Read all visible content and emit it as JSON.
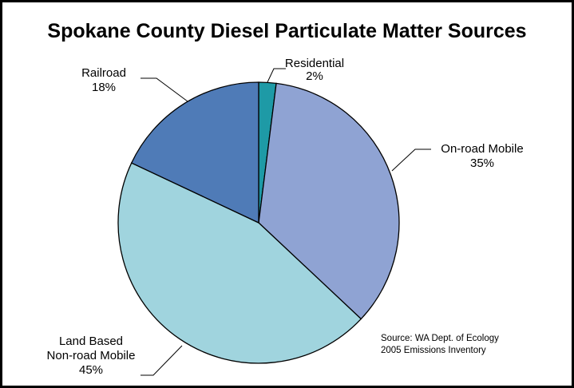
{
  "chart_data": {
    "type": "pie",
    "title": "Spokane County Diesel Particulate Matter Sources",
    "slices": [
      {
        "label_lines": [
          "Residential"
        ],
        "value_text": "2%",
        "value": 2,
        "color": "#1e9aa6"
      },
      {
        "label_lines": [
          "On-road Mobile"
        ],
        "value_text": "35%",
        "value": 35,
        "color": "#8fa3d3"
      },
      {
        "label_lines": [
          "Land Based",
          "Non-road Mobile"
        ],
        "value_text": "45%",
        "value": 45,
        "color": "#a0d4de"
      },
      {
        "label_lines": [
          "Railroad"
        ],
        "value_text": "18%",
        "value": 18,
        "color": "#4f7bb7"
      }
    ],
    "source_lines": [
      "Source: WA Dept. of Ecology",
      "2005 Emissions Inventory"
    ]
  }
}
